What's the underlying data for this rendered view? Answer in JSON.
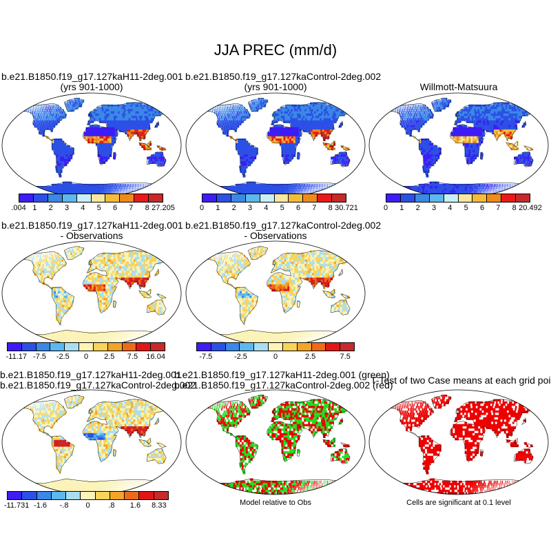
{
  "title": "JJA PREC (mm/d)",
  "colors": {
    "abs": [
      "#3d1df5",
      "#2c50e6",
      "#3b88e6",
      "#5cb8ef",
      "#c8eef7",
      "#f8e7a0",
      "#f4bc3a",
      "#f08a1a",
      "#ea1a1a",
      "#c62a2a"
    ],
    "diff": [
      "#3d1df5",
      "#2c50e6",
      "#3b88e6",
      "#5cb8ef",
      "#a9def2",
      "#fbf3b8",
      "#f8d45a",
      "#f2a528",
      "#ee6a1a",
      "#e21616",
      "#c62a2a"
    ],
    "green": "#22dd22",
    "red": "#ee0000",
    "ocean": "#ffffff"
  },
  "panels": [
    {
      "title1": "b.e21.B1850.f19_g17.127kaH11-2deg.001",
      "title2": "(yrs 901-1000)",
      "ticks": [
        ".004",
        "1",
        "2",
        "3",
        "4",
        "5",
        "6",
        "7",
        "8",
        "27.205"
      ]
    },
    {
      "title1": "b.e21.B1850.f19_g17.127kaControl-2deg.002",
      "title2": "(yrs 901-1000)",
      "ticks": [
        "0",
        "1",
        "2",
        "3",
        "4",
        "5",
        "6",
        "7",
        "8",
        "30.721"
      ]
    },
    {
      "title1": "Willmott-Matsuura",
      "title2": "",
      "ticks": [
        "0",
        "1",
        "2",
        "3",
        "4",
        "5",
        "6",
        "7",
        "8",
        "20.492"
      ]
    },
    {
      "title1": "b.e21.B1850.f19_g17.127kaH11-2deg.001",
      "title2": "- Observations",
      "ticks": [
        "-11.17",
        "-7.5",
        "-2.5",
        "0",
        "2.5",
        "7.5",
        "16.04"
      ]
    },
    {
      "title1": "b.e21.B1850.f19_g17.127kaControl-2deg.002",
      "title2": "- Observations",
      "ticks": [
        "-7.5",
        "-2.5",
        "0",
        "2.5",
        "7.5"
      ]
    },
    {
      "title1": "b.e21.B1850.f19_g17.127kaH11-2deg.001",
      "title2": "b.e21.B1850.f19_g17.127kaControl-2deg.002",
      "ticks": [
        "-11.731",
        "-1.6",
        "-.8",
        "0",
        ".8",
        "1.6",
        "8.33"
      ]
    },
    {
      "title1": "b.e21.B1850.f19_g17.127kaH11-2deg.001 (green)",
      "title2": "b.e21.B1850.f19_g17.127kaControl-2deg.002 (red)",
      "note": "Model relative to Obs"
    },
    {
      "title1": "T-Test of two Case means at each grid point",
      "title2": "",
      "note": "Cells are significant at 0.1 level"
    }
  ]
}
